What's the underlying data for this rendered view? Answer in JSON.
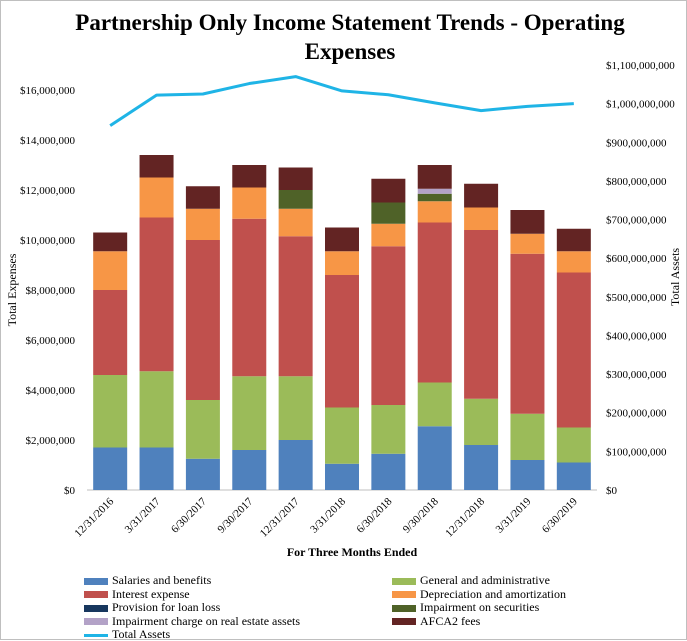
{
  "chart_data": {
    "type": "bar",
    "title": "Partnership Only Income Statement Trends - Operating Expenses",
    "xlabel": "For Three Months  Ended",
    "ylabel": "Total Expenses",
    "y2label": "Total Assets",
    "ylim": [
      0,
      17000000
    ],
    "y2lim": [
      0,
      1100000000
    ],
    "yticks": [
      "$0",
      "$2,000,000",
      "$4,000,000",
      "$6,000,000",
      "$8,000,000",
      "$10,000,000",
      "$12,000,000",
      "$14,000,000",
      "$16,000,000"
    ],
    "y2ticks": [
      "$0",
      "$100,000,000",
      "$200,000,000",
      "$300,000,000",
      "$400,000,000",
      "$500,000,000",
      "$600,000,000",
      "$700,000,000",
      "$800,000,000",
      "$900,000,000",
      "$1,000,000,000",
      "$1,100,000,000"
    ],
    "categories": [
      "12/31/2016",
      "3/31/2017",
      "6/30/2017",
      "9/30/2017",
      "12/31/2017",
      "3/31/2018",
      "6/30/2018",
      "9/30/2018",
      "12/31/2018",
      "3/31/2019",
      "6/30/2019"
    ],
    "stacked": true,
    "series": [
      {
        "name": "Salaries and benefits",
        "color": "#4f81bd",
        "values": [
          1700000,
          1700000,
          1250000,
          1600000,
          2000000,
          1050000,
          1450000,
          2550000,
          1800000,
          1200000,
          1100000
        ]
      },
      {
        "name": "General and administrative",
        "color": "#9bbb59",
        "values": [
          2900000,
          3050000,
          2350000,
          2950000,
          2550000,
          2250000,
          1950000,
          1750000,
          1850000,
          1850000,
          1400000
        ]
      },
      {
        "name": "Interest expense",
        "color": "#c0504d",
        "values": [
          3400000,
          6150000,
          6400000,
          6300000,
          5600000,
          5300000,
          6350000,
          6400000,
          6750000,
          6400000,
          6200000
        ]
      },
      {
        "name": "Depreciation and amortization",
        "color": "#f79646",
        "values": [
          1550000,
          1600000,
          1250000,
          1250000,
          1100000,
          950000,
          900000,
          850000,
          900000,
          800000,
          850000
        ]
      },
      {
        "name": "Provision for loan loss",
        "color": "#17375e",
        "values": [
          0,
          0,
          0,
          0,
          0,
          0,
          0,
          0,
          0,
          0,
          0
        ]
      },
      {
        "name": "Impairment on securities",
        "color": "#4f6228",
        "values": [
          0,
          0,
          0,
          0,
          750000,
          0,
          850000,
          300000,
          0,
          0,
          0
        ]
      },
      {
        "name": "Impairment charge on real estate assets",
        "color": "#b3a2c7",
        "values": [
          0,
          0,
          0,
          0,
          0,
          0,
          0,
          200000,
          0,
          0,
          0
        ]
      },
      {
        "name": "AFCA2 fees",
        "color": "#632423",
        "values": [
          750000,
          900000,
          900000,
          900000,
          900000,
          950000,
          950000,
          950000,
          950000,
          950000,
          900000
        ]
      }
    ],
    "line_series": {
      "name": "Total Assets",
      "color": "#1fb4e6",
      "axis": "right",
      "values": [
        943000000,
        1022000000,
        1025000000,
        1052000000,
        1070000000,
        1033000000,
        1023000000,
        1002000000,
        982000000,
        993000000,
        1000000000
      ]
    },
    "legend_position": "bottom",
    "grid": false
  }
}
